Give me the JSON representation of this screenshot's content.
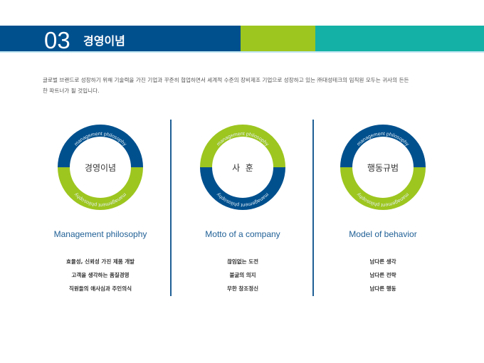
{
  "header": {
    "number": "03",
    "title": "경영이념"
  },
  "intro": "글로벌 브랜드로 성장하기 위해 기술력을 가진 기업과 꾸준히 협업하면서 세계적 수준의 장비제조 기업으로 성장하고 있는 ㈜대성테크의 임직원 모두는 귀사의 든든한 파트너가 될 것입니다.",
  "colors": {
    "blue": "#00508e",
    "green": "#9dc61f",
    "teal": "#14b1a6"
  },
  "columns": [
    {
      "center": "경영이념",
      "ring_text": "management philosophy",
      "title": "Management philosophy",
      "items": [
        "효율성, 신뢰성 가진 제품 개발",
        "고객을 생각하는 품질경영",
        "직원들의 애사심과 주인의식"
      ]
    },
    {
      "center": "사  훈",
      "ring_text": "management philosophy",
      "title": "Motto of a company",
      "items": [
        "끊임없는 도전",
        "불굴의 의지",
        "무한 창조정신"
      ]
    },
    {
      "center": "행동규범",
      "ring_text": "management philosophy",
      "title": "Model of behavior",
      "items": [
        "남다른 생각",
        "남다른 전략",
        "남다른 행동"
      ]
    }
  ]
}
